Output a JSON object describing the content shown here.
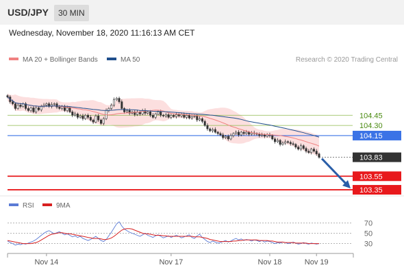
{
  "header": {
    "symbol": "USD/JPY",
    "timeframe": "30 MIN",
    "datetime": "Wednesday, November 18, 2020 11:16:13 AM CET"
  },
  "copyright": "Research © 2020 Trading Central",
  "colors": {
    "bollinger": "#f08080",
    "bollinger_fill": "#fbd9d9",
    "ma50": "#1f4e8c",
    "candle": "#333333",
    "level_green": "#8db84a",
    "level_green_text": "#4a8a10",
    "pivot_blue": "#3b73e6",
    "support_red": "#e8191c",
    "last_price": "#333333",
    "rsi": "#5b7bd5",
    "rsi_ma": "#d82020",
    "arrow": "#2a5ea8"
  },
  "chart_data": [
    {
      "type": "candlestick",
      "legend": [
        {
          "name": "MA 20 + Bollinger Bands",
          "color": "#f08080"
        },
        {
          "name": "MA 50",
          "color": "#1f4e8c"
        }
      ],
      "ylim": [
        103.3,
        105.1
      ],
      "levels": [
        {
          "value": 104.45,
          "label": "104.45",
          "kind": "resistance"
        },
        {
          "value": 104.3,
          "label": "104.30",
          "kind": "resistance"
        },
        {
          "value": 104.15,
          "label": "104.15",
          "kind": "pivot"
        },
        {
          "value": 103.83,
          "label": "103.83",
          "kind": "last"
        },
        {
          "value": 103.55,
          "label": "103.55",
          "kind": "support"
        },
        {
          "value": 103.35,
          "label": "103.35",
          "kind": "support"
        }
      ],
      "close": [
        104.72,
        104.65,
        104.62,
        104.55,
        104.6,
        104.58,
        104.62,
        104.55,
        104.52,
        104.56,
        104.5,
        104.56,
        104.53,
        104.58,
        104.6,
        104.62,
        104.58,
        104.61,
        104.62,
        104.57,
        104.55,
        104.58,
        104.52,
        104.56,
        104.5,
        104.45,
        104.47,
        104.42,
        104.44,
        104.4,
        104.45,
        104.42,
        104.38,
        104.35,
        104.44,
        104.38,
        104.33,
        104.4,
        104.52,
        104.55,
        104.6,
        104.68,
        104.7,
        104.65,
        104.55,
        104.5,
        104.52,
        104.48,
        104.5,
        104.46,
        104.5,
        104.47,
        104.52,
        104.48,
        104.5,
        104.45,
        104.42,
        104.47,
        104.5,
        104.45,
        104.44,
        104.46,
        104.42,
        104.45,
        104.43,
        104.46,
        104.44,
        104.46,
        104.42,
        104.45,
        104.41,
        104.43,
        104.44,
        104.38,
        104.4,
        104.36,
        104.3,
        104.25,
        104.22,
        104.24,
        104.2,
        104.18,
        104.16,
        104.12,
        104.14,
        104.1,
        104.15,
        104.18,
        104.2,
        104.16,
        104.2,
        104.18,
        104.2,
        104.17,
        104.19,
        104.18,
        104.17,
        104.15,
        104.16,
        104.14,
        104.16,
        104.15,
        104.1,
        104.06,
        104.08,
        104.02,
        104.04,
        104.06,
        104.05,
        104.03,
        104.02,
        103.98,
        103.95,
        104.0,
        103.96,
        103.92,
        103.9,
        103.95,
        103.92,
        103.88,
        103.83
      ],
      "x_ticks": [
        {
          "label": "Nov 14",
          "index": 15
        },
        {
          "label": "Nov 17",
          "index": 63
        },
        {
          "label": "Nov 18",
          "index": 101
        },
        {
          "label": "Nov 19",
          "index": 119
        }
      ],
      "projection": {
        "from": 103.83,
        "to": 103.35
      }
    },
    {
      "type": "line",
      "legend": [
        {
          "name": "RSI",
          "color": "#5b7bd5"
        },
        {
          "name": "9MA",
          "color": "#d82020"
        }
      ],
      "ylim": [
        15,
        85
      ],
      "y_ticks": [
        70,
        50,
        30
      ],
      "series": [
        {
          "name": "RSI",
          "values": [
            35,
            32,
            30,
            27,
            29,
            28,
            30,
            29,
            31,
            33,
            35,
            38,
            42,
            46,
            50,
            53,
            55,
            52,
            49,
            51,
            53,
            50,
            47,
            49,
            46,
            43,
            45,
            42,
            44,
            40,
            38,
            36,
            38,
            41,
            44,
            40,
            36,
            34,
            38,
            45,
            52,
            60,
            68,
            72,
            64,
            58,
            55,
            52,
            50,
            48,
            46,
            44,
            47,
            50,
            46,
            44,
            42,
            45,
            47,
            44,
            41,
            43,
            45,
            42,
            44,
            46,
            44,
            41,
            43,
            45,
            47,
            42,
            40,
            45,
            48,
            42,
            38,
            34,
            32,
            35,
            33,
            31,
            32,
            34,
            36,
            33,
            35,
            38,
            40,
            37,
            39,
            36,
            38,
            37,
            35,
            37,
            36,
            34,
            36,
            33,
            35,
            34,
            32,
            30,
            32,
            31,
            33,
            32,
            30,
            31,
            33,
            31,
            29,
            30,
            32,
            30,
            29,
            31,
            30,
            29,
            30
          ]
        },
        {
          "name": "9MA",
          "values": [
            36,
            35,
            34,
            33,
            32,
            31,
            30,
            30,
            30,
            30,
            31,
            32,
            34,
            37,
            40,
            43,
            46,
            48,
            49,
            50,
            51,
            51,
            50,
            49,
            49,
            48,
            47,
            46,
            45,
            44,
            43,
            42,
            41,
            40,
            40,
            40,
            39,
            38,
            38,
            39,
            41,
            44,
            48,
            52,
            56,
            58,
            59,
            59,
            58,
            56,
            54,
            52,
            50,
            49,
            49,
            48,
            47,
            46,
            46,
            46,
            45,
            45,
            44,
            44,
            44,
            44,
            44,
            44,
            44,
            44,
            44,
            44,
            43,
            43,
            43,
            42,
            41,
            40,
            38,
            37,
            36,
            35,
            34,
            34,
            34,
            34,
            34,
            35,
            35,
            36,
            36,
            37,
            37,
            37,
            37,
            37,
            37,
            36,
            36,
            36,
            36,
            35,
            35,
            34,
            33,
            33,
            33,
            32,
            32,
            32,
            32,
            31,
            31,
            31,
            31,
            31,
            30,
            30,
            30,
            30,
            30
          ]
        }
      ]
    }
  ]
}
